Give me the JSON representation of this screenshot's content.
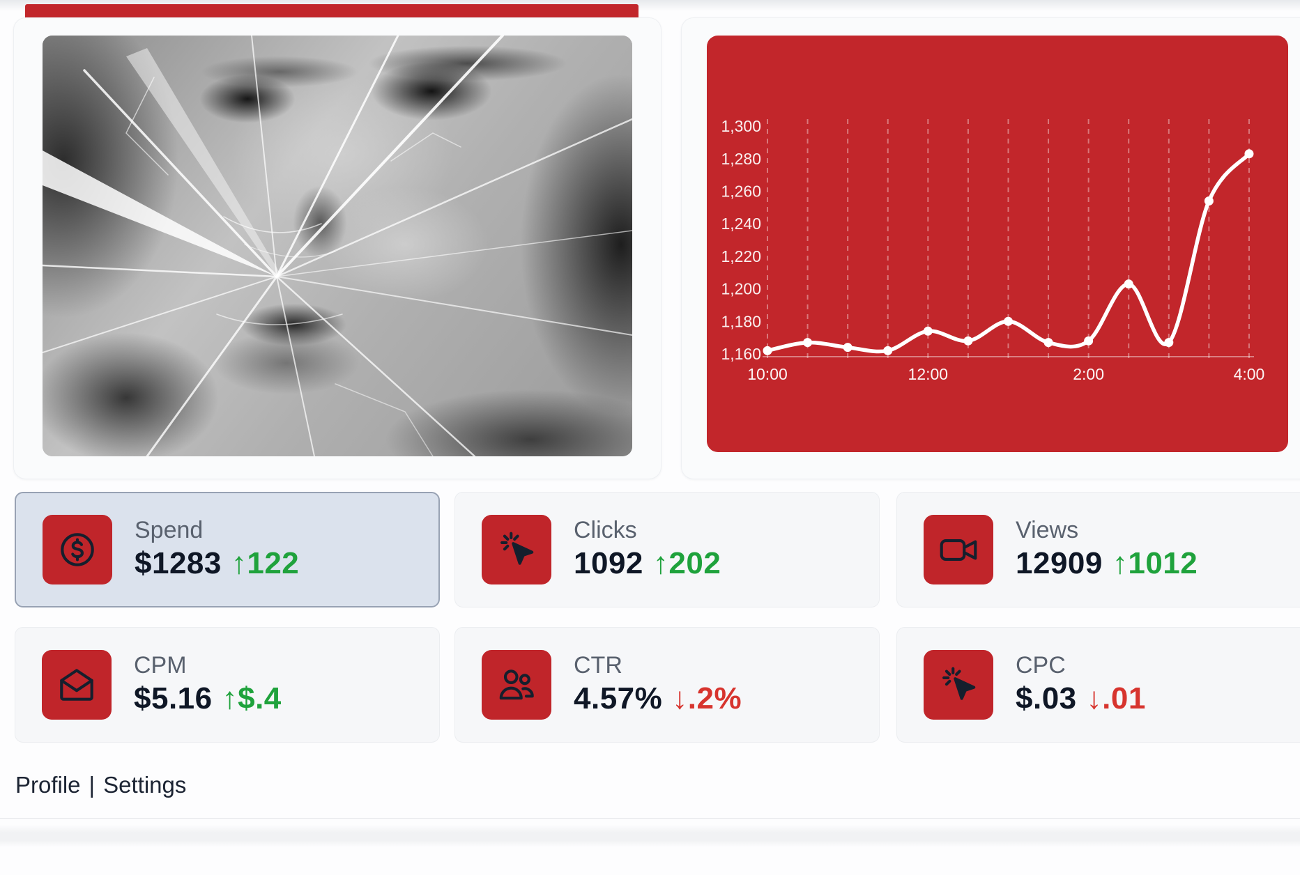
{
  "theme": {
    "accent_red": "#c2262b",
    "tile_red": "#c0252a",
    "green_up": "#1fa23c",
    "red_down": "#d7342e",
    "ink": "#0f1726",
    "label_gray": "#59616e",
    "selected_card_bg": "#dbe2ed",
    "selected_card_border": "#98a2b3",
    "chart_line": "#ffffff"
  },
  "chart_data": {
    "type": "line",
    "x": [
      "10:00",
      "10:30",
      "11:00",
      "11:30",
      "12:00",
      "12:30",
      "1:00",
      "1:30",
      "2:00",
      "2:30",
      "3:00",
      "3:30",
      "4:00"
    ],
    "values": [
      1162,
      1167,
      1164,
      1162,
      1174,
      1168,
      1180,
      1167,
      1168,
      1203,
      1167,
      1254,
      1283
    ],
    "x_tick_labels": [
      "10:00",
      "12:00",
      "2:00",
      "4:00"
    ],
    "x_tick_every": 4,
    "y_ticks": [
      1160,
      1180,
      1200,
      1220,
      1240,
      1260,
      1280,
      1300
    ],
    "y_tick_labels": [
      "1,160",
      "1,180",
      "1,200",
      "1,220",
      "1,240",
      "1,260",
      "1,280",
      "1,300"
    ],
    "ylim": [
      1160,
      1306
    ],
    "grid": "vertical-dashed",
    "legend": "none",
    "title": "",
    "xlabel": "",
    "ylabel": "",
    "background": "#c2262b",
    "line_color": "#ffffff",
    "marker": "dot"
  },
  "stats": {
    "cards": [
      {
        "id": "spend",
        "label": "Spend",
        "value": "$1283",
        "arrow": "↑",
        "delta": "122",
        "direction": "up",
        "icon": "dollar-circle-icon",
        "selected": true
      },
      {
        "id": "clicks",
        "label": "Clicks",
        "value": "1092",
        "arrow": "↑",
        "delta": "202",
        "direction": "up",
        "icon": "cursor-click-icon",
        "selected": false
      },
      {
        "id": "views",
        "label": "Views",
        "value": "12909",
        "arrow": "↑",
        "delta": "1012",
        "direction": "up",
        "icon": "video-camera-icon",
        "selected": false
      },
      {
        "id": "cpm",
        "label": "CPM",
        "value": "$5.16",
        "arrow": "↑",
        "delta": "$.4",
        "direction": "up",
        "icon": "envelope-open-icon",
        "selected": false
      },
      {
        "id": "ctr",
        "label": "CTR",
        "value": "4.57%",
        "arrow": "↓",
        "delta": ".2%",
        "direction": "down",
        "icon": "users-icon",
        "selected": false
      },
      {
        "id": "cpc",
        "label": "CPC",
        "value": "$.03",
        "arrow": "↓",
        "delta": ".01",
        "direction": "down",
        "icon": "cursor-click-icon",
        "selected": false
      }
    ]
  },
  "footer": {
    "separator": "|",
    "links": [
      {
        "label": "Profile"
      },
      {
        "label": "Settings"
      }
    ]
  }
}
